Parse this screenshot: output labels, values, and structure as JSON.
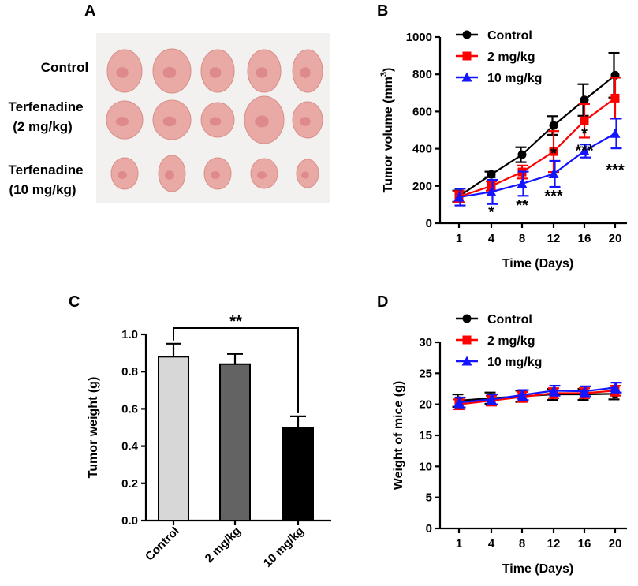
{
  "panels": {
    "A": {
      "letter": "A",
      "row_labels": [
        [
          "Control"
        ],
        [
          "Terfenadine",
          "(2 mg/kg)"
        ],
        [
          "Terfenadine",
          "(10 mg/kg)"
        ]
      ],
      "tumors_per_row": 5,
      "tumor_color": "#e9a9a4",
      "background_color": "#f2f1ef"
    },
    "B": {
      "letter": "B"
    },
    "C": {
      "letter": "C"
    },
    "D": {
      "letter": "D"
    }
  },
  "colors": {
    "control": "#000000",
    "low": "#ff0000",
    "high": "#1414ff"
  },
  "chart_data": [
    {
      "id": "B",
      "type": "line",
      "title": "",
      "xlabel": "Time (Days)",
      "ylabel": "Tumor volume (mm3)",
      "ylabel_main": "Tumor volume (mm",
      "ylabel_sup": "3",
      "ylabel_end": ")",
      "x": [
        1,
        4,
        8,
        12,
        16,
        20
      ],
      "yticks": [
        0,
        200,
        400,
        600,
        800,
        1000
      ],
      "ylim": [
        0,
        1000
      ],
      "legend": "top-left",
      "series": [
        {
          "name": "Control",
          "marker": "circle",
          "color": "#000000",
          "values": [
            145,
            262,
            368,
            525,
            662,
            795
          ],
          "errors": [
            30,
            15,
            40,
            50,
            85,
            120
          ]
        },
        {
          "name": "2 mg/kg",
          "marker": "square",
          "color": "#ff0000",
          "values": [
            142,
            200,
            275,
            385,
            550,
            672
          ],
          "errors": [
            30,
            25,
            35,
            110,
            90,
            110
          ]
        },
        {
          "name": "10 mg/kg",
          "marker": "triangle",
          "color": "#1414ff",
          "values": [
            140,
            168,
            212,
            265,
            388,
            482
          ],
          "errors": [
            45,
            65,
            65,
            70,
            35,
            80
          ]
        }
      ],
      "annotations": [
        {
          "text": "*",
          "x": 4,
          "y": 75
        },
        {
          "text": "**",
          "x": 8,
          "y": 110
        },
        {
          "text": "*",
          "x": 12,
          "y": 390
        },
        {
          "text": "***",
          "x": 12,
          "y": 160
        },
        {
          "text": "*",
          "x": 16,
          "y": 495
        },
        {
          "text": "***",
          "x": 16,
          "y": 405
        },
        {
          "text": "***",
          "x": 20,
          "y": 300
        }
      ]
    },
    {
      "id": "C",
      "type": "bar",
      "title": "",
      "xlabel": "",
      "ylabel": "Tumor weight (g)",
      "categories": [
        "Control",
        "2 mg/kg",
        "10 mg/kg"
      ],
      "values": [
        0.88,
        0.84,
        0.5
      ],
      "errors": [
        0.07,
        0.055,
        0.06
      ],
      "bar_colors": [
        "#d7d7d7",
        "#636363",
        "#000000"
      ],
      "yticks": [
        "0.0",
        "0.2",
        "0.4",
        "0.6",
        "0.8",
        "1.0"
      ],
      "ylim": [
        0,
        1.0
      ],
      "significance": {
        "text": "**",
        "from": "Control",
        "to": "10 mg/kg"
      }
    },
    {
      "id": "D",
      "type": "line",
      "title": "",
      "xlabel": "Time (Days)",
      "ylabel": "Weight of mice (g)",
      "x": [
        1,
        4,
        8,
        12,
        16,
        20
      ],
      "yticks": [
        0,
        5,
        10,
        15,
        20,
        25,
        30
      ],
      "ylim": [
        0,
        30
      ],
      "legend": "top-left",
      "series": [
        {
          "name": "Control",
          "marker": "circle",
          "color": "#000000",
          "values": [
            20.6,
            21.0,
            21.3,
            21.6,
            21.6,
            21.7
          ],
          "errors": [
            1.0,
            0.9,
            0.9,
            0.9,
            0.9,
            0.9
          ]
        },
        {
          "name": "2 mg/kg",
          "marker": "square",
          "color": "#ff0000",
          "values": [
            20.0,
            20.6,
            21.2,
            21.8,
            21.8,
            22.2
          ],
          "errors": [
            0.8,
            0.8,
            0.8,
            0.8,
            0.8,
            0.8
          ]
        },
        {
          "name": "10 mg/kg",
          "marker": "triangle",
          "color": "#1414ff",
          "values": [
            20.3,
            20.8,
            21.5,
            22.2,
            22.1,
            22.7
          ],
          "errors": [
            0.8,
            0.8,
            0.8,
            0.8,
            0.8,
            0.8
          ]
        }
      ]
    }
  ]
}
